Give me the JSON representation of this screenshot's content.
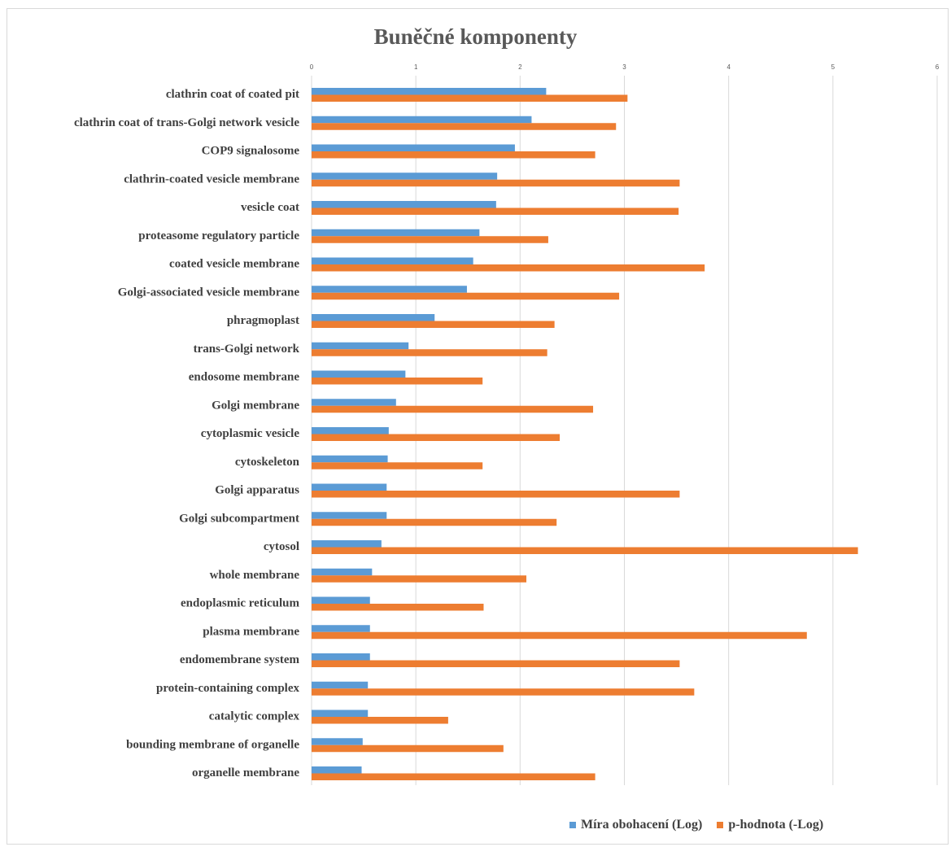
{
  "chart_data": {
    "type": "bar",
    "orientation": "horizontal",
    "title": "Buněčné komponenty",
    "xlim": [
      0,
      6
    ],
    "x_ticks": [
      "0",
      "1",
      "2",
      "3",
      "4",
      "5",
      "6"
    ],
    "grid": "vertical",
    "legend_position": "bottom",
    "categories": [
      "clathrin coat of coated pit",
      "clathrin coat of trans-Golgi network vesicle",
      "COP9 signalosome",
      "clathrin-coated vesicle membrane",
      "vesicle coat",
      "proteasome regulatory particle",
      "coated vesicle membrane",
      "Golgi-associated vesicle membrane",
      "phragmoplast",
      "trans-Golgi network",
      "endosome membrane",
      "Golgi membrane",
      "cytoplasmic vesicle",
      "cytoskeleton",
      "Golgi apparatus",
      "Golgi subcompartment",
      "cytosol",
      "whole membrane",
      "endoplasmic reticulum",
      "plasma membrane",
      "endomembrane system",
      "protein-containing complex",
      "catalytic complex",
      "bounding membrane of organelle",
      "organelle membrane"
    ],
    "series": [
      {
        "name": "Míra obohacení (Log)",
        "color": "#5b9bd5",
        "values": [
          2.25,
          2.11,
          1.95,
          1.78,
          1.77,
          1.61,
          1.55,
          1.49,
          1.18,
          0.93,
          0.9,
          0.81,
          0.74,
          0.73,
          0.72,
          0.72,
          0.67,
          0.58,
          0.56,
          0.56,
          0.56,
          0.54,
          0.54,
          0.49,
          0.48
        ]
      },
      {
        "name": "p-hodnota (-Log)",
        "color": "#ed7d31",
        "values": [
          3.03,
          2.92,
          2.72,
          3.53,
          3.52,
          2.27,
          3.77,
          2.95,
          2.33,
          2.26,
          1.64,
          2.7,
          2.38,
          1.64,
          3.53,
          2.35,
          5.24,
          2.06,
          1.65,
          4.75,
          3.53,
          3.67,
          1.31,
          1.84,
          2.72
        ]
      }
    ]
  }
}
